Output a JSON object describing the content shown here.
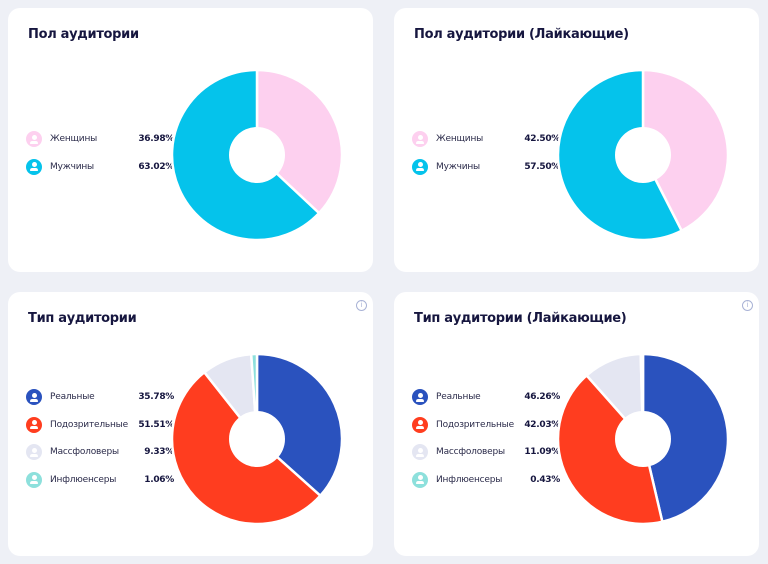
{
  "chart_data": [
    {
      "type": "pie",
      "title": "Пол аудитории",
      "categories": [
        "Женщины",
        "Мужчины"
      ],
      "values": [
        36.98,
        63.02
      ],
      "labels": [
        "36.98%",
        "63.02%"
      ],
      "colors": [
        "#fdd0ef",
        "#05c3eb"
      ],
      "info_icon": false
    },
    {
      "type": "pie",
      "title": "Пол аудитории (Лайкающие)",
      "categories": [
        "Женщины",
        "Мужчины"
      ],
      "values": [
        42.5,
        57.5
      ],
      "labels": [
        "42.50%",
        "57.50%"
      ],
      "colors": [
        "#fdd0ef",
        "#05c3eb"
      ],
      "info_icon": false
    },
    {
      "type": "pie",
      "title": "Тип аудитории",
      "categories": [
        "Реальные",
        "Подозрительные",
        "Массфоловеры",
        "Инфлюенсеры"
      ],
      "values": [
        35.78,
        51.51,
        9.33,
        1.06
      ],
      "labels": [
        "35.78%",
        "51.51%",
        "9.33%",
        "1.06%"
      ],
      "colors": [
        "#2a52be",
        "#ff3d1f",
        "#e4e6f2",
        "#8de0dc"
      ],
      "info_icon": true
    },
    {
      "type": "pie",
      "title": "Тип аудитории (Лайкающие)",
      "categories": [
        "Реальные",
        "Подозрительные",
        "Массфоловеры",
        "Инфлюенсеры"
      ],
      "values": [
        46.26,
        42.03,
        11.09,
        0.43
      ],
      "labels": [
        "46.26%",
        "42.03%",
        "11.09%",
        "0.43%"
      ],
      "colors": [
        "#2a52be",
        "#ff3d1f",
        "#e4e6f2",
        "#8de0dc"
      ],
      "info_icon": true
    }
  ],
  "info_glyph": "i"
}
